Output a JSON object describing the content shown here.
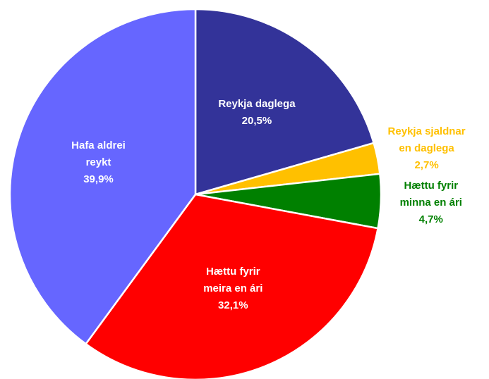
{
  "chart_data": {
    "type": "pie",
    "categories": [
      "Reykja daglega",
      "Reykja sjaldnar en daglega",
      "Hættu fyrir minna en ári",
      "Hættu fyrir meira en ári",
      "Hafa aldrei reykt"
    ],
    "values": [
      20.5,
      2.7,
      4.7,
      32.1,
      39.9
    ],
    "value_labels": [
      "20,5%",
      "2,7%",
      "4,7%",
      "32,1%",
      "39,9%"
    ],
    "colors": [
      "#333399",
      "#ffc000",
      "#008000",
      "#ff0000",
      "#6666ff"
    ]
  }
}
